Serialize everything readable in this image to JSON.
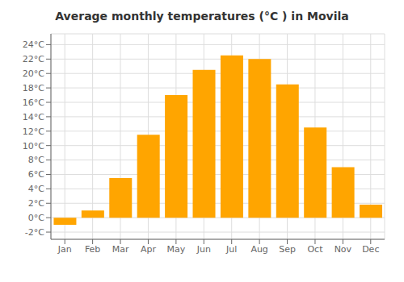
{
  "chart_data": {
    "type": "bar",
    "title": "Average monthly temperatures (°C ) in Movila",
    "categories": [
      "Jan",
      "Feb",
      "Mar",
      "Apr",
      "May",
      "Jun",
      "Jul",
      "Aug",
      "Sep",
      "Oct",
      "Nov",
      "Dec"
    ],
    "values": [
      -1.0,
      1.0,
      5.5,
      11.5,
      17.0,
      20.5,
      22.5,
      22.0,
      18.5,
      12.5,
      7.0,
      1.8
    ],
    "color": "#FFA500",
    "ylim": [
      -3,
      25.5
    ],
    "yticks": [
      {
        "value": -2,
        "label": "-2°C"
      },
      {
        "value": 0,
        "label": "0°C"
      },
      {
        "value": 2,
        "label": "2°C"
      },
      {
        "value": 4,
        "label": "4°C"
      },
      {
        "value": 6,
        "label": "6°C"
      },
      {
        "value": 8,
        "label": "8°C"
      },
      {
        "value": 10,
        "label": "10°C"
      },
      {
        "value": 12,
        "label": "12°C"
      },
      {
        "value": 14,
        "label": "14°C"
      },
      {
        "value": 16,
        "label": "16°C"
      },
      {
        "value": 18,
        "label": "18°C"
      },
      {
        "value": 20,
        "label": "20°C"
      },
      {
        "value": 22,
        "label": "22°C"
      },
      {
        "value": 24,
        "label": "24°C"
      }
    ],
    "grid": true
  }
}
